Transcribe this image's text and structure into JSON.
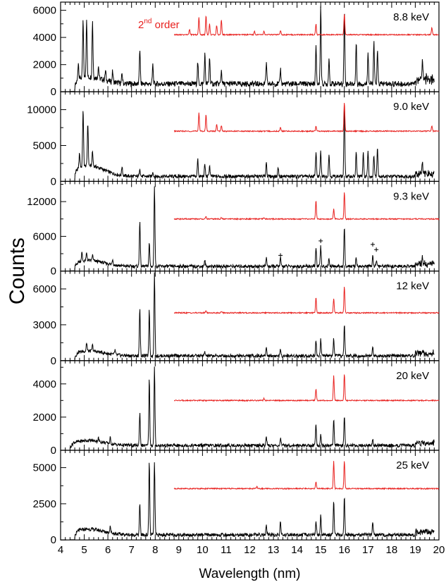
{
  "chart_data": {
    "type": "line",
    "xlabel": "Wavelength (nm)",
    "ylabel": "Counts",
    "xlim": [
      4,
      20
    ],
    "x_ticks": [
      "4",
      "5",
      "6",
      "7",
      "8",
      "9",
      "10",
      "11",
      "12",
      "13",
      "14",
      "15",
      "16",
      "17",
      "18",
      "19",
      "20"
    ],
    "colors": {
      "first_order": "#000000",
      "second_order": "#e8211f"
    },
    "annotation": {
      "base": "2",
      "sup": "nd",
      "rest": " order"
    },
    "panels": [
      {
        "energy": "8.8 keV",
        "ylim": [
          0,
          6600
        ],
        "yticks": [
          0,
          2000,
          4000,
          6000
        ],
        "baseline": 500,
        "onset": 4.6,
        "bump": 500,
        "peaks": [
          [
            4.75,
            1200
          ],
          [
            4.95,
            4200
          ],
          [
            5.1,
            4300
          ],
          [
            5.35,
            4200
          ],
          [
            5.6,
            900
          ],
          [
            5.9,
            700
          ],
          [
            6.2,
            800
          ],
          [
            6.6,
            700
          ],
          [
            7.35,
            2600
          ],
          [
            7.9,
            1400
          ],
          [
            9.8,
            1600
          ],
          [
            10.1,
            2200
          ],
          [
            10.3,
            2000
          ],
          [
            10.8,
            1000
          ],
          [
            12.7,
            1500
          ],
          [
            13.3,
            1100
          ],
          [
            14.8,
            2700
          ],
          [
            15.0,
            5700
          ],
          [
            15.35,
            1900
          ],
          [
            16.0,
            5300
          ],
          [
            16.5,
            3000
          ],
          [
            17.0,
            2400
          ],
          [
            17.25,
            3000
          ],
          [
            17.4,
            2400
          ],
          [
            19.3,
            1600
          ]
        ],
        "second": {
          "offset": 4200,
          "start": 8.8,
          "peaks": [
            [
              9.45,
              400
            ],
            [
              9.85,
              1300
            ],
            [
              10.15,
              1400
            ],
            [
              10.3,
              800
            ],
            [
              10.6,
              700
            ],
            [
              10.8,
              1100
            ],
            [
              12.2,
              250
            ],
            [
              12.6,
              250
            ],
            [
              13.3,
              300
            ],
            [
              14.8,
              800
            ],
            [
              16.0,
              1500
            ],
            [
              19.7,
              550
            ]
          ]
        }
      },
      {
        "energy": "9.0 keV",
        "ylim": [
          0,
          12500
        ],
        "yticks": [
          0,
          5000,
          10000
        ],
        "baseline": 600,
        "onset": 4.6,
        "bump": 1500,
        "peaks": [
          [
            4.8,
            2000
          ],
          [
            4.95,
            8000
          ],
          [
            5.15,
            6000
          ],
          [
            5.35,
            2000
          ],
          [
            6.6,
            1300
          ],
          [
            7.35,
            1200
          ],
          [
            7.9,
            700
          ],
          [
            9.8,
            2400
          ],
          [
            10.1,
            1700
          ],
          [
            10.3,
            1500
          ],
          [
            12.7,
            2000
          ],
          [
            13.2,
            1300
          ],
          [
            14.8,
            3500
          ],
          [
            15.0,
            3500
          ],
          [
            15.35,
            3200
          ],
          [
            16.0,
            10500
          ],
          [
            16.5,
            3300
          ],
          [
            16.8,
            3200
          ],
          [
            17.0,
            3500
          ],
          [
            17.25,
            3000
          ],
          [
            17.4,
            4200
          ],
          [
            19.3,
            1500
          ]
        ],
        "second": {
          "offset": 7000,
          "start": 8.8,
          "peaks": [
            [
              9.85,
              2600
            ],
            [
              10.15,
              2300
            ],
            [
              10.6,
              900
            ],
            [
              10.8,
              800
            ],
            [
              13.3,
              600
            ],
            [
              14.8,
              700
            ],
            [
              16.0,
              4000
            ],
            [
              19.7,
              800
            ]
          ]
        }
      },
      {
        "energy": "9.3 keV",
        "ylim": [
          0,
          15500
        ],
        "yticks": [
          0,
          6000,
          12000
        ],
        "baseline": 700,
        "onset": 4.6,
        "bump": 1000,
        "peaks": [
          [
            4.9,
            1500
          ],
          [
            5.1,
            1300
          ],
          [
            5.35,
            1000
          ],
          [
            6.2,
            1000
          ],
          [
            7.35,
            8000
          ],
          [
            7.75,
            4000
          ],
          [
            7.97,
            14000
          ],
          [
            10.1,
            1000
          ],
          [
            12.7,
            1500
          ],
          [
            13.3,
            1400
          ],
          [
            14.8,
            3200
          ],
          [
            15.0,
            3500
          ],
          [
            15.35,
            1400
          ],
          [
            16.0,
            6800
          ],
          [
            16.5,
            1500
          ],
          [
            17.2,
            2000
          ],
          [
            17.35,
            1000
          ],
          [
            19.3,
            1200
          ]
        ],
        "markers": [
          [
            13.3,
            2700
          ],
          [
            15.0,
            5200
          ],
          [
            17.2,
            4600
          ],
          [
            17.35,
            3700
          ]
        ],
        "second": {
          "offset": 9000,
          "start": 8.8,
          "peaks": [
            [
              10.15,
              400
            ],
            [
              10.8,
              250
            ],
            [
              12.6,
              200
            ],
            [
              14.8,
              3200
            ],
            [
              15.55,
              1700
            ],
            [
              16.0,
              4600
            ]
          ]
        }
      },
      {
        "energy": "12 keV",
        "ylim": [
          0,
          7500
        ],
        "yticks": [
          0,
          3000,
          6000
        ],
        "baseline": 350,
        "onset": 4.6,
        "bump": 400,
        "peaks": [
          [
            5.1,
            700
          ],
          [
            5.35,
            500
          ],
          [
            6.3,
            400
          ],
          [
            7.35,
            4100
          ],
          [
            7.75,
            3800
          ],
          [
            7.97,
            7000
          ],
          [
            10.1,
            300
          ],
          [
            12.7,
            700
          ],
          [
            13.3,
            500
          ],
          [
            14.8,
            1300
          ],
          [
            15.0,
            1400
          ],
          [
            15.55,
            1400
          ],
          [
            16.0,
            2700
          ],
          [
            17.2,
            700
          ],
          [
            19.3,
            300
          ]
        ],
        "second": {
          "offset": 4000,
          "start": 8.8,
          "peaks": [
            [
              10.15,
              200
            ],
            [
              10.8,
              150
            ],
            [
              14.8,
              1300
            ],
            [
              15.55,
              1200
            ],
            [
              16.0,
              2200
            ]
          ]
        }
      },
      {
        "energy": "20 keV",
        "ylim": [
          0,
          5400
        ],
        "yticks": [
          0,
          2000,
          4000
        ],
        "baseline": 250,
        "onset": 4.4,
        "bump": 300,
        "peaks": [
          [
            5.6,
            200
          ],
          [
            6.1,
            350
          ],
          [
            7.35,
            2000
          ],
          [
            7.75,
            4000
          ],
          [
            7.97,
            4700
          ],
          [
            12.7,
            500
          ],
          [
            13.3,
            400
          ],
          [
            14.8,
            1300
          ],
          [
            15.0,
            600
          ],
          [
            15.55,
            1600
          ],
          [
            16.0,
            1800
          ],
          [
            17.2,
            400
          ]
        ],
        "second": {
          "offset": 3000,
          "start": 8.8,
          "peaks": [
            [
              12.6,
              120
            ],
            [
              14.8,
              700
            ],
            [
              15.55,
              1500
            ],
            [
              16.0,
              1600
            ]
          ]
        }
      },
      {
        "energy": "25 keV",
        "ylim": [
          0,
          6200
        ],
        "yticks": [
          0,
          2500,
          5000
        ],
        "baseline": 300,
        "onset": 4.6,
        "bump": 400,
        "peaks": [
          [
            6.1,
            500
          ],
          [
            7.35,
            2100
          ],
          [
            7.75,
            5100
          ],
          [
            7.97,
            5100
          ],
          [
            12.7,
            700
          ],
          [
            13.3,
            900
          ],
          [
            14.8,
            1000
          ],
          [
            15.0,
            1400
          ],
          [
            15.55,
            2300
          ],
          [
            16.0,
            2600
          ],
          [
            17.2,
            900
          ]
        ],
        "second": {
          "offset": 3550,
          "start": 8.8,
          "peaks": [
            [
              12.3,
              150
            ],
            [
              14.8,
              500
            ],
            [
              15.55,
              1900
            ],
            [
              16.0,
              1900
            ]
          ]
        }
      }
    ]
  }
}
